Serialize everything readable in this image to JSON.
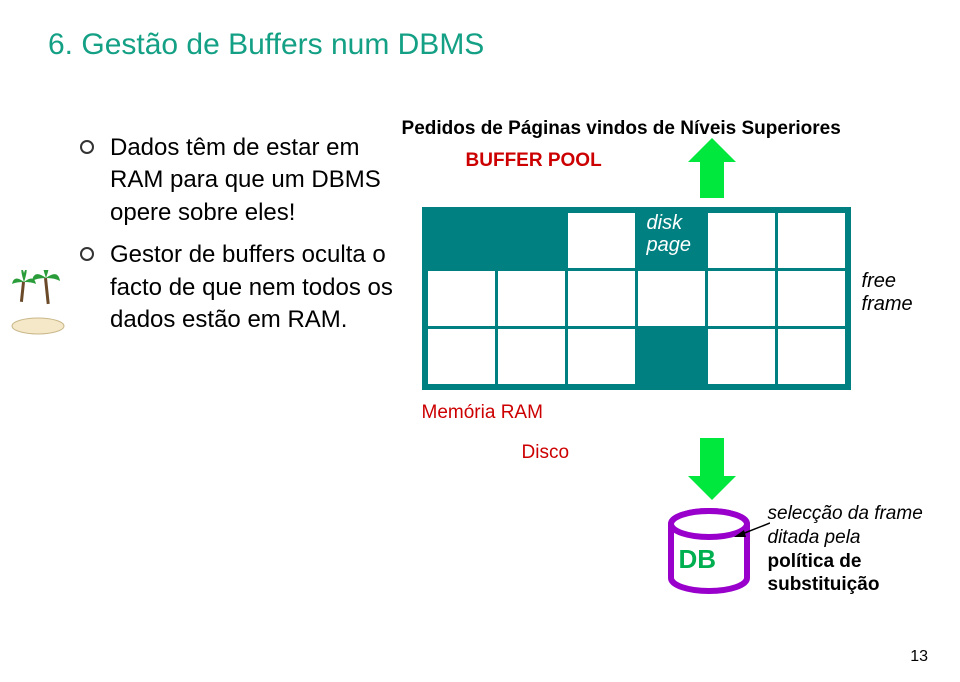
{
  "title": "6. Gestão de Buffers num DBMS",
  "bullets": [
    "Dados têm de estar em RAM para que um DBMS opere sobre eles!",
    "Gestor de buffers oculta o facto de que nem todos os dados estão em RAM."
  ],
  "topLabel": "Pedidos de Páginas vindos de Níveis Superiores",
  "poolLabel": "BUFFER POOL",
  "diskPage1": "disk",
  "diskPage2": "page",
  "freeFrame1": "free",
  "freeFrame2": "frame",
  "memLabel": "Memória RAM",
  "discoLabel": "Disco",
  "dbLabel": "DB",
  "sel1": "selecção da frame",
  "sel2": "ditada pela",
  "sel3": "política de",
  "sel4": "substituição",
  "slideNum": "13",
  "grid": {
    "rows": 3,
    "cols": 6,
    "filled": [
      [
        0,
        0
      ],
      [
        0,
        1
      ],
      [
        0,
        3
      ],
      [
        2,
        3
      ]
    ]
  },
  "colors": {
    "titleColor": "#14a085",
    "poolBorder": "#008080",
    "poolFill": "#008080",
    "redText": "#cc0000",
    "arrowGreen": "#00e83e",
    "dbPurple": "#9900cc",
    "dbText": "#00b050",
    "background": "#ffffff"
  },
  "typography": {
    "titleSize": 30,
    "bulletSize": 24,
    "labelSize": 19
  }
}
